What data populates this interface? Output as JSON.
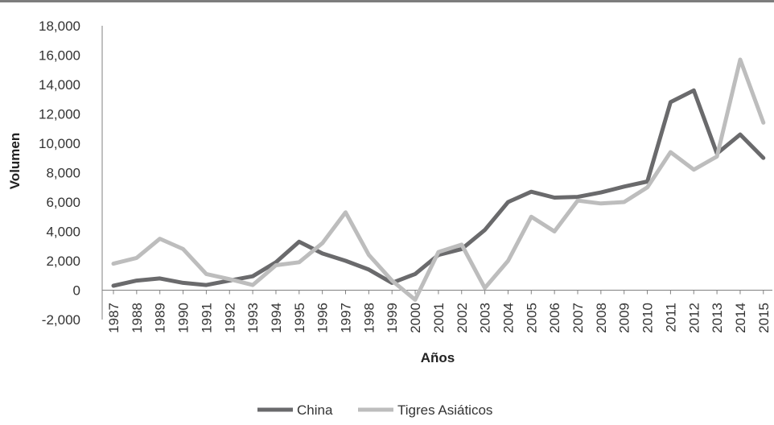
{
  "colors": {
    "china": "#6a6a6c",
    "tigres": "#bdbdbd",
    "axis": "#808080",
    "text": "#333333"
  },
  "chart_data": {
    "type": "line",
    "xlabel": "Años",
    "ylabel": "Volumen",
    "ylim": [
      -2000,
      18000
    ],
    "yticks": [
      -2000,
      0,
      2000,
      4000,
      6000,
      8000,
      10000,
      12000,
      14000,
      16000,
      18000
    ],
    "ytick_labels": [
      "-2,000",
      "0",
      "2,000",
      "4,000",
      "6,000",
      "8,000",
      "10,000",
      "12,000",
      "14,000",
      "16,000",
      "18,000"
    ],
    "grid": false,
    "legend_position": "bottom-center",
    "categories": [
      "1987",
      "1988",
      "1989",
      "1990",
      "1991",
      "1992",
      "1993",
      "1994",
      "1995",
      "1996",
      "1997",
      "1998",
      "1999",
      "2000",
      "2001",
      "2002",
      "2003",
      "2004",
      "2005",
      "2006",
      "2007",
      "2008",
      "2009",
      "2010",
      "2011",
      "2012",
      "2013",
      "2014",
      "2015"
    ],
    "series": [
      {
        "name": "China",
        "values": [
          300,
          650,
          800,
          500,
          350,
          650,
          950,
          1900,
          3300,
          2500,
          2000,
          1400,
          500,
          1100,
          2400,
          2800,
          4100,
          6000,
          6700,
          6300,
          6350,
          6650,
          7050,
          7400,
          12800,
          13600,
          9300,
          10600,
          9000
        ]
      },
      {
        "name": "Tigres Asiáticos",
        "values": [
          1800,
          2200,
          3500,
          2800,
          1100,
          750,
          350,
          1700,
          1900,
          3200,
          5300,
          2400,
          650,
          -650,
          2600,
          3100,
          150,
          2000,
          5000,
          4000,
          6100,
          5900,
          6000,
          7000,
          9400,
          8200,
          9100,
          15700,
          11400
        ]
      }
    ]
  }
}
